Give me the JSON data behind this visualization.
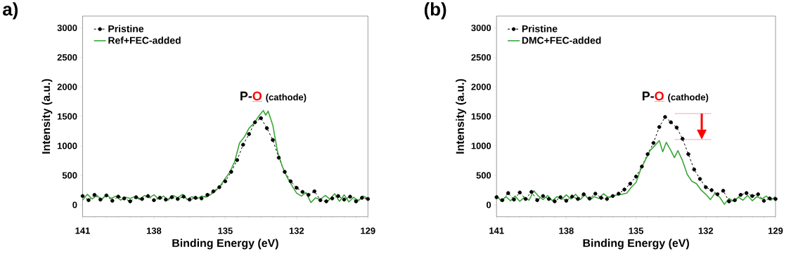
{
  "chart_data": [
    {
      "type": "line",
      "title": "a)",
      "xlabel": "Binding Energy (eV)",
      "ylabel": "Intensity (a.u.)",
      "annotations": [
        "P-",
        "O",
        "(cathode)"
      ],
      "xlim": [
        141,
        129
      ],
      "xticks": [
        141,
        138,
        135,
        132,
        129
      ],
      "ylim": [
        -200,
        3200
      ],
      "yticks": [
        0,
        500,
        1000,
        1500,
        2000,
        2500,
        3000
      ],
      "legend": "top left",
      "series": [
        {
          "name": "Pristine",
          "color": "#000000",
          "marker": "circle",
          "line_style": "dashed",
          "x": [
            141.0,
            140.75,
            140.5,
            140.25,
            140.0,
            139.75,
            139.5,
            139.25,
            139.0,
            138.75,
            138.5,
            138.25,
            138.0,
            137.75,
            137.5,
            137.25,
            137.0,
            136.75,
            136.5,
            136.25,
            136.0,
            135.75,
            135.5,
            135.25,
            135.0,
            134.75,
            134.5,
            134.25,
            134.0,
            133.75,
            133.5,
            133.25,
            133.0,
            132.75,
            132.5,
            132.25,
            132.0,
            131.75,
            131.5,
            131.25,
            131.0,
            130.75,
            130.5,
            130.25,
            130.0,
            129.75,
            129.5,
            129.25,
            129.0
          ],
          "values": [
            150,
            80,
            170,
            90,
            160,
            70,
            140,
            110,
            60,
            130,
            100,
            150,
            80,
            120,
            90,
            130,
            100,
            140,
            90,
            120,
            110,
            170,
            230,
            300,
            400,
            560,
            760,
            1020,
            1200,
            1400,
            1470,
            1300,
            1100,
            800,
            560,
            400,
            290,
            220,
            170,
            230,
            80,
            60,
            110,
            150,
            90,
            140,
            60,
            120,
            100
          ]
        },
        {
          "name": "Ref+FEC-added",
          "color": "#3aa637",
          "marker": "none",
          "line_style": "solid",
          "x": [
            141.0,
            140.8,
            140.6,
            140.4,
            140.2,
            140.0,
            139.8,
            139.6,
            139.4,
            139.2,
            139.0,
            138.8,
            138.6,
            138.4,
            138.2,
            138.0,
            137.8,
            137.6,
            137.4,
            137.2,
            137.0,
            136.8,
            136.6,
            136.4,
            136.2,
            136.0,
            135.8,
            135.6,
            135.4,
            135.2,
            135.0,
            134.8,
            134.6,
            134.4,
            134.2,
            134.0,
            133.8,
            133.6,
            133.4,
            133.3,
            133.2,
            133.0,
            132.8,
            132.6,
            132.4,
            132.2,
            132.0,
            131.8,
            131.6,
            131.4,
            131.2,
            131.0,
            130.8,
            130.6,
            130.4,
            130.2,
            130.0,
            129.8,
            129.6,
            129.4,
            129.2,
            129.0
          ],
          "values": [
            80,
            180,
            100,
            160,
            90,
            170,
            110,
            150,
            80,
            130,
            110,
            140,
            90,
            160,
            120,
            170,
            100,
            150,
            80,
            160,
            120,
            180,
            90,
            140,
            100,
            150,
            130,
            180,
            240,
            330,
            450,
            560,
            740,
            1050,
            1150,
            1300,
            1380,
            1500,
            1600,
            1520,
            1590,
            1350,
            900,
            650,
            470,
            330,
            200,
            150,
            210,
            40,
            120,
            90,
            160,
            100,
            190,
            60,
            170,
            50,
            130,
            70,
            150,
            110
          ]
        }
      ]
    },
    {
      "type": "line",
      "title": "(b)",
      "xlabel": "Binding Energy (eV)",
      "ylabel": "Intensity (a.u.)",
      "annotations": [
        "P-",
        "O",
        "(cathode)"
      ],
      "xlim": [
        141,
        129
      ],
      "xticks": [
        141,
        138,
        135,
        132,
        129
      ],
      "ylim": [
        -200,
        3200
      ],
      "yticks": [
        0,
        500,
        1000,
        1500,
        2000,
        2500,
        3000
      ],
      "legend": "top left",
      "series": [
        {
          "name": "Pristine",
          "color": "#000000",
          "marker": "circle",
          "line_style": "dashed",
          "x": [
            141.0,
            140.75,
            140.5,
            140.25,
            140.0,
            139.75,
            139.5,
            139.25,
            139.0,
            138.75,
            138.5,
            138.25,
            138.0,
            137.75,
            137.5,
            137.25,
            137.0,
            136.75,
            136.5,
            136.25,
            136.0,
            135.75,
            135.5,
            135.25,
            135.0,
            134.75,
            134.5,
            134.25,
            134.0,
            133.75,
            133.5,
            133.25,
            133.0,
            132.75,
            132.5,
            132.25,
            132.0,
            131.75,
            131.5,
            131.25,
            131.0,
            130.75,
            130.5,
            130.25,
            130.0,
            129.75,
            129.5,
            129.25,
            129.0
          ],
          "values": [
            130,
            80,
            200,
            90,
            210,
            100,
            220,
            80,
            150,
            100,
            60,
            130,
            70,
            140,
            100,
            180,
            110,
            190,
            120,
            100,
            150,
            190,
            260,
            360,
            480,
            650,
            860,
            1050,
            1320,
            1490,
            1400,
            1310,
            1120,
            860,
            600,
            440,
            300,
            250,
            180,
            240,
            60,
            80,
            170,
            200,
            150,
            180,
            70,
            110,
            100
          ]
        },
        {
          "name": "DMC+FEC-added",
          "color": "#3aa637",
          "marker": "none",
          "line_style": "solid",
          "x": [
            141.0,
            140.8,
            140.6,
            140.4,
            140.2,
            140.0,
            139.8,
            139.6,
            139.4,
            139.2,
            139.0,
            138.8,
            138.6,
            138.4,
            138.2,
            138.0,
            137.8,
            137.6,
            137.4,
            137.2,
            137.0,
            136.8,
            136.6,
            136.4,
            136.2,
            136.0,
            135.8,
            135.6,
            135.4,
            135.2,
            135.0,
            134.8,
            134.6,
            134.4,
            134.2,
            134.0,
            133.85,
            133.7,
            133.5,
            133.35,
            133.2,
            133.0,
            132.8,
            132.6,
            132.4,
            132.2,
            132.0,
            131.8,
            131.6,
            131.4,
            131.2,
            131.0,
            130.8,
            130.6,
            130.4,
            130.2,
            130.0,
            129.8,
            129.6,
            129.4,
            129.2,
            129.0
          ],
          "values": [
            170,
            60,
            140,
            70,
            150,
            60,
            130,
            80,
            240,
            150,
            90,
            160,
            70,
            140,
            90,
            170,
            100,
            180,
            90,
            170,
            80,
            140,
            110,
            190,
            130,
            150,
            170,
            180,
            200,
            300,
            380,
            600,
            760,
            920,
            1000,
            1090,
            900,
            1060,
            920,
            800,
            920,
            750,
            520,
            400,
            360,
            250,
            180,
            90,
            200,
            130,
            10,
            110,
            60,
            130,
            80,
            160,
            70,
            140,
            100,
            150,
            80,
            140
          ]
        }
      ]
    }
  ]
}
